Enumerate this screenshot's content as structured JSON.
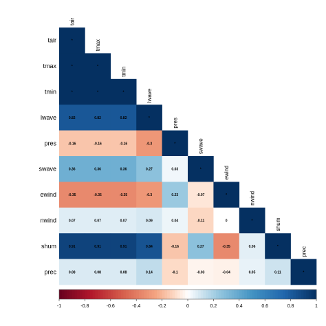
{
  "chart_data": {
    "type": "heatmap",
    "title": "",
    "variables": [
      "tair",
      "tmax",
      "tmin",
      "lwave",
      "pres",
      "swave",
      "ewind",
      "nwind",
      "shum",
      "prec"
    ],
    "matrix": [
      [
        1,
        1,
        1,
        0.82,
        -0.16,
        0.36,
        -0.35,
        0.07,
        0.91,
        0.08
      ],
      [
        1,
        1,
        1,
        0.82,
        -0.16,
        0.36,
        -0.35,
        0.07,
        0.91,
        0.08
      ],
      [
        1,
        1,
        1,
        0.82,
        -0.16,
        0.36,
        -0.35,
        0.07,
        0.91,
        0.08
      ],
      [
        0.82,
        0.82,
        0.82,
        1,
        -0.3,
        0.27,
        -0.3,
        0.09,
        0.84,
        0.14
      ],
      [
        -0.16,
        -0.16,
        -0.16,
        -0.3,
        1,
        0.03,
        0.23,
        0.04,
        -0.16,
        -0.1
      ],
      [
        0.36,
        0.36,
        0.36,
        0.27,
        0.03,
        1,
        -0.07,
        -0.11,
        0.27,
        -0.03
      ],
      [
        -0.35,
        -0.35,
        -0.35,
        -0.3,
        0.23,
        -0.07,
        1,
        0,
        -0.35,
        -0.04
      ],
      [
        0.07,
        0.07,
        0.07,
        0.09,
        0.04,
        -0.11,
        0,
        1,
        0.06,
        0.05
      ],
      [
        0.91,
        0.91,
        0.91,
        0.84,
        -0.16,
        0.27,
        -0.35,
        0.06,
        1,
        0.11
      ],
      [
        0.08,
        0.08,
        0.08,
        0.14,
        -0.1,
        -0.03,
        -0.04,
        0.05,
        0.11,
        1
      ]
    ],
    "labels": [
      [
        "*"
      ],
      [
        "*",
        "*"
      ],
      [
        "*",
        "*",
        "*"
      ],
      [
        "0.82",
        "0.82",
        "0.82",
        "*"
      ],
      [
        "-0.16",
        "-0.16",
        "-0.16",
        "-0.3",
        "*"
      ],
      [
        "0.36",
        "0.36",
        "0.36",
        "0.27",
        "0.03",
        "*"
      ],
      [
        "-0.35",
        "-0.35",
        "-0.35",
        "-0.3",
        "0.23",
        "-0.07",
        "*"
      ],
      [
        "0.07",
        "0.07",
        "0.07",
        "0.09",
        "0.04",
        "-0.11",
        "0",
        "*"
      ],
      [
        "0.91",
        "0.91",
        "0.91",
        "0.84",
        "-0.16",
        "0.27",
        "-0.35",
        "0.06",
        "*"
      ],
      [
        "0.08",
        "0.08",
        "0.08",
        "0.14",
        "-0.1",
        "-0.03",
        "-0.04",
        "0.05",
        "0.11",
        "*"
      ]
    ],
    "triangle": "lower",
    "color_scale": {
      "range": [
        -1,
        1
      ],
      "negative_color": "#67001f",
      "mid_color": "#ffffff",
      "positive_color": "#053061",
      "ticks": [
        "-1",
        "-0.8",
        "-0.6",
        "-0.4",
        "-0.2",
        "0",
        "0.2",
        "0.4",
        "0.6",
        "0.8",
        "1"
      ]
    },
    "legend_placement": "bottom",
    "grid": false
  }
}
